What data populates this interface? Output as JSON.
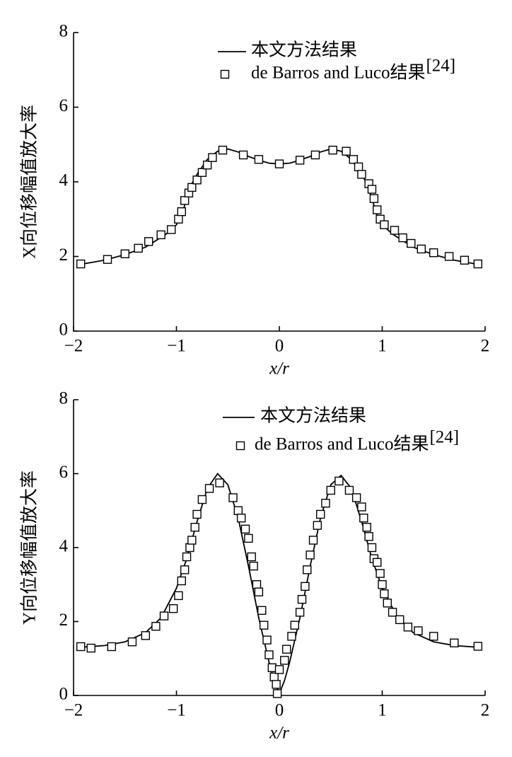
{
  "chart_data": [
    {
      "type": "line",
      "ylabel": "X向位移幅值放大率",
      "xlabel": "x/r",
      "xlim": [
        -2,
        2
      ],
      "ylim": [
        0,
        8
      ],
      "xticks": [
        {
          "value": -2,
          "label": "−2"
        },
        {
          "value": -1,
          "label": "−1"
        },
        0,
        1,
        2
      ],
      "yticks": [
        0,
        2,
        4,
        6,
        8
      ],
      "series": [
        {
          "name": "本文方法结果",
          "color": "#000000",
          "style": "line",
          "x": [
            -1.95,
            -1.7,
            -1.5,
            -1.3,
            -1.1,
            -1.0,
            -0.95,
            -0.9,
            -0.85,
            -0.8,
            -0.7,
            -0.6,
            -0.5,
            -0.4,
            -0.3,
            -0.2,
            -0.1,
            0,
            0.1,
            0.2,
            0.3,
            0.4,
            0.5,
            0.6,
            0.7,
            0.8,
            0.85,
            0.9,
            0.95,
            1.0,
            1.1,
            1.3,
            1.5,
            1.7,
            1.95
          ],
          "values": [
            1.78,
            1.9,
            2.05,
            2.25,
            2.6,
            2.85,
            3.1,
            3.55,
            3.95,
            4.2,
            4.6,
            4.82,
            4.88,
            4.8,
            4.68,
            4.58,
            4.5,
            4.48,
            4.5,
            4.58,
            4.68,
            4.8,
            4.88,
            4.82,
            4.6,
            4.2,
            3.95,
            3.55,
            3.1,
            2.85,
            2.6,
            2.25,
            2.05,
            1.9,
            1.78
          ]
        },
        {
          "name": "de Barros and Luco结果",
          "name_sup": "[24]",
          "color": "#000000",
          "style": "square",
          "x": [
            -1.93,
            -1.67,
            -1.5,
            -1.37,
            -1.27,
            -1.15,
            -1.05,
            -0.98,
            -0.95,
            -0.92,
            -0.88,
            -0.85,
            -0.8,
            -0.75,
            -0.7,
            -0.65,
            -0.55,
            -0.35,
            -0.2,
            0,
            0.2,
            0.35,
            0.52,
            0.65,
            0.72,
            0.77,
            0.8,
            0.87,
            0.9,
            0.92,
            0.95,
            0.98,
            1.02,
            1.12,
            1.2,
            1.28,
            1.38,
            1.5,
            1.65,
            1.8,
            1.93
          ],
          "values": [
            1.8,
            1.92,
            2.07,
            2.22,
            2.4,
            2.58,
            2.72,
            3.0,
            3.2,
            3.5,
            3.7,
            3.85,
            4.05,
            4.25,
            4.45,
            4.65,
            4.85,
            4.72,
            4.6,
            4.48,
            4.58,
            4.72,
            4.85,
            4.82,
            4.6,
            4.4,
            4.2,
            3.95,
            3.8,
            3.55,
            3.25,
            3.0,
            2.85,
            2.7,
            2.5,
            2.35,
            2.2,
            2.1,
            2.0,
            1.9,
            1.8
          ]
        }
      ]
    },
    {
      "type": "line",
      "ylabel": "Y向位移幅值放大率",
      "xlabel": "x/r",
      "xlim": [
        -2,
        2
      ],
      "ylim": [
        0,
        8
      ],
      "xticks": [
        {
          "value": -2,
          "label": "−2"
        },
        {
          "value": -1,
          "label": "−1"
        },
        0,
        1,
        2
      ],
      "yticks": [
        0,
        2,
        4,
        6,
        8
      ],
      "series": [
        {
          "name": "本文方法结果",
          "color": "#000000",
          "style": "line",
          "x": [
            -1.95,
            -1.7,
            -1.5,
            -1.3,
            -1.15,
            -1.0,
            -0.9,
            -0.8,
            -0.7,
            -0.6,
            -0.5,
            -0.4,
            -0.3,
            -0.2,
            -0.1,
            -0.05,
            0,
            0.05,
            0.1,
            0.2,
            0.3,
            0.4,
            0.5,
            0.6,
            0.7,
            0.8,
            0.9,
            1.0,
            1.15,
            1.3,
            1.5,
            1.7,
            1.95
          ],
          "values": [
            1.3,
            1.35,
            1.45,
            1.7,
            2.1,
            2.9,
            3.7,
            4.7,
            5.6,
            6.0,
            5.7,
            4.8,
            3.5,
            2.1,
            0.9,
            0.4,
            0.05,
            0.4,
            0.9,
            2.1,
            3.5,
            4.8,
            5.7,
            5.95,
            5.6,
            4.7,
            3.7,
            2.9,
            2.1,
            1.7,
            1.45,
            1.35,
            1.3
          ]
        },
        {
          "name": "de Barros and Luco结果",
          "name_sup": "[24]",
          "color": "#000000",
          "style": "square",
          "x": [
            -1.93,
            -1.83,
            -1.63,
            -1.43,
            -1.3,
            -1.2,
            -1.12,
            -1.03,
            -0.98,
            -0.95,
            -0.92,
            -0.9,
            -0.87,
            -0.85,
            -0.82,
            -0.8,
            -0.75,
            -0.68,
            -0.58,
            -0.45,
            -0.4,
            -0.37,
            -0.33,
            -0.3,
            -0.27,
            -0.25,
            -0.22,
            -0.2,
            -0.17,
            -0.15,
            -0.12,
            -0.1,
            -0.07,
            -0.05,
            -0.03,
            -0.02,
            0,
            0.05,
            0.07,
            0.12,
            0.15,
            0.2,
            0.22,
            0.25,
            0.27,
            0.3,
            0.33,
            0.37,
            0.4,
            0.45,
            0.5,
            0.58,
            0.68,
            0.75,
            0.8,
            0.82,
            0.85,
            0.87,
            0.9,
            0.92,
            0.95,
            0.98,
            1.0,
            1.02,
            1.05,
            1.1,
            1.17,
            1.25,
            1.35,
            1.5,
            1.7,
            1.93
          ],
          "values": [
            1.32,
            1.28,
            1.32,
            1.45,
            1.62,
            1.87,
            2.15,
            2.35,
            2.7,
            3.1,
            3.4,
            3.75,
            4.0,
            4.2,
            4.55,
            4.9,
            5.3,
            5.6,
            5.75,
            5.35,
            5.0,
            4.8,
            4.5,
            4.25,
            3.75,
            3.5,
            3.0,
            2.8,
            2.3,
            1.9,
            1.5,
            1.1,
            0.75,
            0.5,
            0.3,
            0.05,
            0.7,
            0.95,
            1.25,
            1.6,
            1.9,
            2.25,
            2.6,
            2.95,
            3.4,
            3.8,
            4.2,
            4.6,
            4.9,
            5.2,
            5.55,
            5.8,
            5.55,
            5.35,
            5.1,
            4.8,
            4.55,
            4.3,
            4.0,
            3.7,
            3.6,
            3.3,
            3.0,
            2.75,
            2.5,
            2.25,
            2.05,
            1.85,
            1.75,
            1.6,
            1.42,
            1.33
          ]
        }
      ]
    }
  ]
}
